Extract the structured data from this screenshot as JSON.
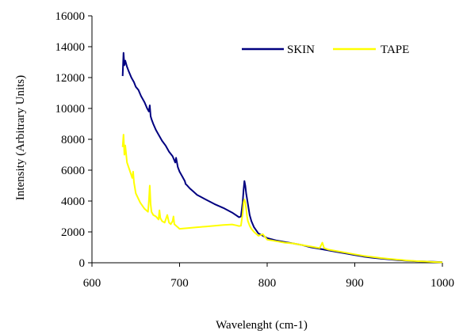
{
  "chart_data": {
    "type": "line",
    "title": "",
    "xlabel": "Wavelenght (cm-1)",
    "ylabel": "Intensity (Arbitrary Units)",
    "xlim": [
      600,
      1000
    ],
    "ylim": [
      0,
      16000
    ],
    "x_ticks": [
      "600",
      "700",
      "800",
      "900",
      "1000"
    ],
    "y_ticks": [
      "0",
      "2000",
      "4000",
      "6000",
      "8000",
      "10000",
      "12000",
      "14000",
      "16000"
    ],
    "grid": false,
    "legend_position": "top-right",
    "series": [
      {
        "name": "SKIN",
        "color": "#000080",
        "x": [
          635,
          636,
          637,
          638,
          640,
          642,
          645,
          648,
          650,
          653,
          656,
          660,
          663,
          665,
          666,
          667,
          668,
          670,
          673,
          676,
          680,
          684,
          688,
          692,
          695,
          696,
          698,
          700,
          703,
          706,
          707,
          708,
          712,
          716,
          720,
          730,
          740,
          750,
          760,
          768,
          770,
          772,
          773,
          774,
          775,
          776,
          778,
          780,
          782,
          785,
          790,
          800,
          810,
          820,
          830,
          840,
          850,
          860,
          870,
          880,
          890,
          900,
          910,
          920,
          930,
          940,
          950,
          960,
          970,
          980,
          990,
          1000
        ],
        "values": [
          12100,
          13600,
          12800,
          13100,
          12700,
          12400,
          12000,
          11700,
          11400,
          11200,
          10800,
          10400,
          10000,
          9800,
          10200,
          9500,
          9300,
          9000,
          8600,
          8300,
          7900,
          7600,
          7200,
          6900,
          6500,
          6800,
          6200,
          5900,
          5600,
          5300,
          5100,
          5050,
          4800,
          4600,
          4400,
          4100,
          3800,
          3550,
          3250,
          2950,
          3000,
          3900,
          4700,
          5300,
          5000,
          4500,
          3800,
          3100,
          2700,
          2300,
          1900,
          1600,
          1450,
          1350,
          1250,
          1150,
          1000,
          900,
          800,
          700,
          600,
          500,
          400,
          330,
          270,
          220,
          170,
          130,
          100,
          80,
          60,
          40
        ]
      },
      {
        "name": "TAPE",
        "color": "#ffff00",
        "x": [
          635,
          636,
          637,
          638,
          640,
          643,
          646,
          647,
          648,
          650,
          655,
          660,
          664,
          665,
          666,
          667,
          668,
          670,
          673,
          676,
          677,
          678,
          680,
          683,
          686,
          688,
          690,
          692,
          693,
          694,
          696,
          698,
          700,
          710,
          720,
          730,
          740,
          750,
          760,
          765,
          768,
          770,
          772,
          773,
          774,
          775,
          776,
          777,
          778,
          780,
          782,
          785,
          790,
          795,
          800,
          810,
          820,
          830,
          840,
          850,
          860,
          863,
          865,
          870,
          880,
          890,
          900,
          910,
          920,
          930,
          940,
          950,
          960,
          970,
          980,
          990,
          1000
        ],
        "values": [
          7500,
          8300,
          7000,
          7600,
          6500,
          6000,
          5500,
          5900,
          5200,
          4500,
          3900,
          3500,
          3300,
          4000,
          5000,
          3800,
          3300,
          3100,
          3000,
          2800,
          3400,
          2900,
          2700,
          2600,
          3100,
          2600,
          2500,
          2700,
          3000,
          2500,
          2400,
          2300,
          2200,
          2250,
          2300,
          2350,
          2400,
          2450,
          2480,
          2420,
          2380,
          2400,
          3200,
          3900,
          4100,
          3900,
          3500,
          3000,
          2700,
          2400,
          2200,
          2000,
          1750,
          1850,
          1500,
          1400,
          1300,
          1250,
          1150,
          1050,
          950,
          1300,
          950,
          850,
          750,
          650,
          550,
          450,
          380,
          310,
          250,
          200,
          150,
          110,
          80,
          50,
          30
        ]
      }
    ]
  }
}
